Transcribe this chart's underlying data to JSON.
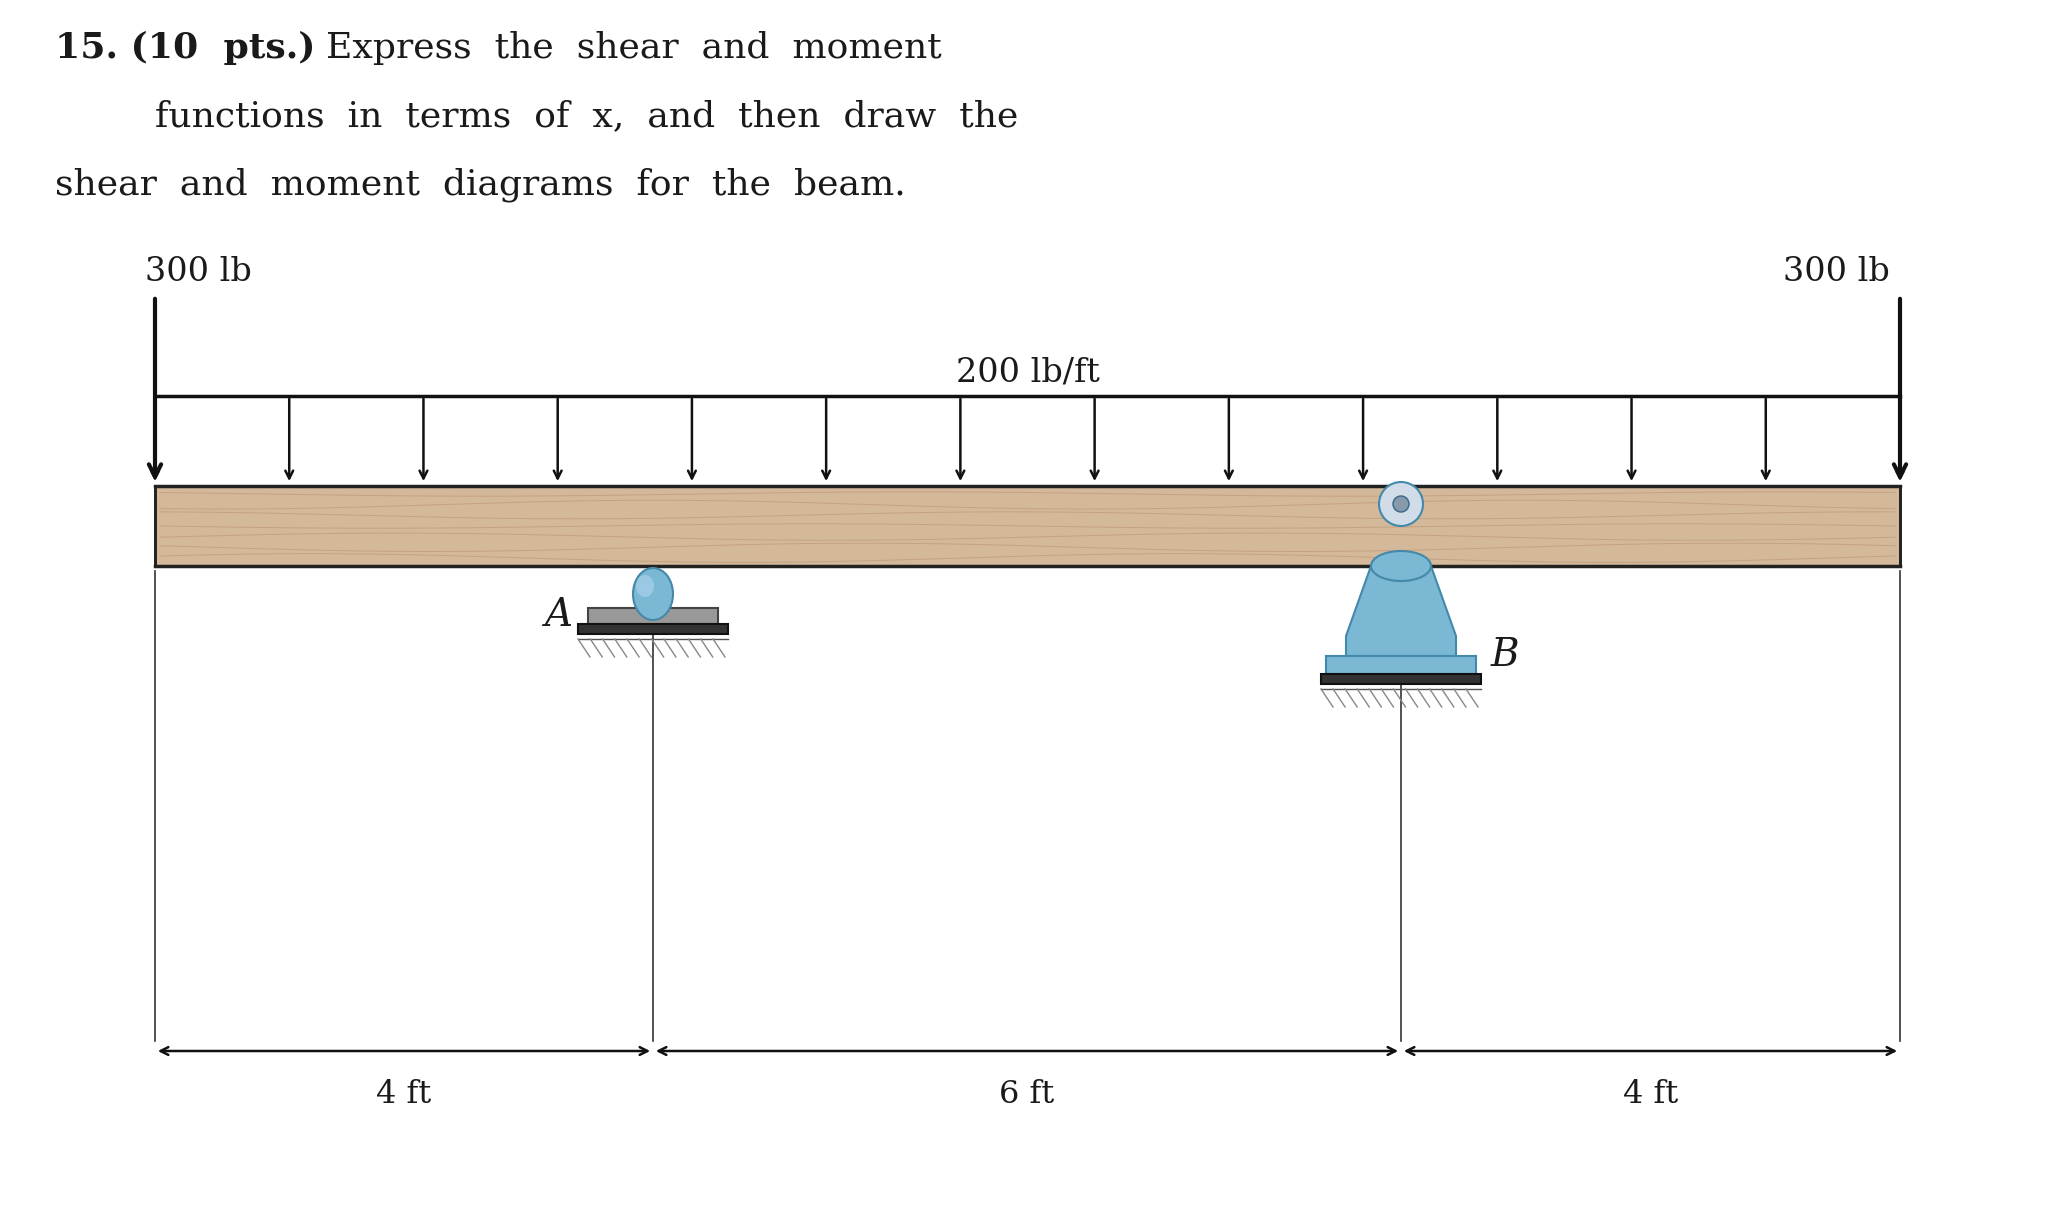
{
  "bg_color": "#ffffff",
  "text_color": "#1a1a1a",
  "beam_color": "#d4b89a",
  "beam_edge": "#3a3a3a",
  "grain_color": "#b89070",
  "arrow_color": "#111111",
  "support_blue": "#7ab8d4",
  "support_blue_dark": "#4488aa",
  "support_blue_light": "#aad0e8",
  "support_gray": "#888888",
  "ground_gray": "#aaaaaa",
  "title_bold_part": "15. (10  pts.)",
  "title_regular_part": "  Express  the  shear  and  moment",
  "title_line2": "functions  in  terms  of  x,  and  then  draw  the",
  "title_line3": "shear  and  moment  diagrams  for  the  beam.",
  "left_load_label": "300 lb",
  "right_load_label": "300 lb",
  "dist_load_label": "200 lb/ft",
  "label_A": "A",
  "label_B": "B",
  "dim_left": "4 ft",
  "dim_mid": "6 ft",
  "dim_right": "4 ft",
  "num_dist_arrows": 14,
  "title_fontsize": 26,
  "label_fontsize": 24,
  "dim_fontsize": 23
}
